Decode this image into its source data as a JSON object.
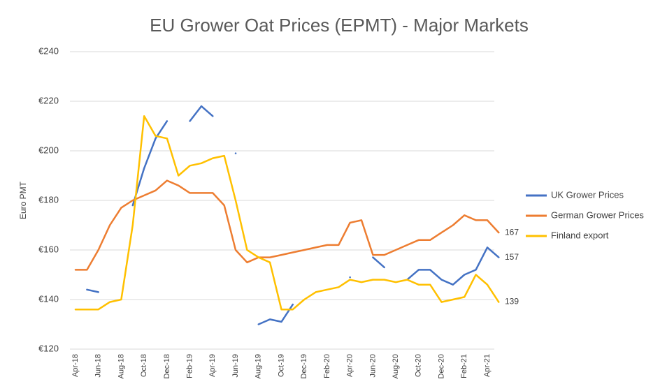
{
  "chart_data": {
    "type": "line",
    "title": "EU Grower Oat Prices (EPMT) - Major Markets",
    "y_label": "Euro PMT",
    "categories": [
      "Apr-18",
      null,
      "Jun-18",
      null,
      "Aug-18",
      null,
      "Oct-18",
      null,
      "Dec-18",
      null,
      "Feb-19",
      null,
      "Apr-19",
      null,
      "Jun-19",
      null,
      "Aug-19",
      null,
      "Oct-19",
      null,
      "Dec-19",
      null,
      "Feb-20",
      null,
      "Apr-20",
      null,
      "Jun-20",
      null,
      "Aug-20",
      null,
      "Oct-20",
      null,
      "Dec-20",
      null,
      "Feb-21",
      null,
      "Apr-21",
      null
    ],
    "series": [
      {
        "name": "UK Grower Prices",
        "color": "#4472c4",
        "end_label": "157",
        "values": [
          null,
          144,
          143,
          null,
          null,
          178,
          193,
          205,
          212,
          null,
          212,
          218,
          214,
          null,
          199,
          null,
          130,
          132,
          131,
          138,
          null,
          null,
          null,
          null,
          149,
          null,
          157,
          153,
          null,
          148,
          152,
          152,
          148,
          146,
          150,
          152,
          161,
          157
        ]
      },
      {
        "name": "German Grower Prices",
        "color": "#ed7d31",
        "end_label": "167",
        "values": [
          152,
          152,
          160,
          170,
          177,
          180,
          182,
          184,
          188,
          186,
          183,
          183,
          183,
          178,
          160,
          155,
          157,
          157,
          158,
          159,
          160,
          161,
          162,
          162,
          171,
          172,
          158,
          158,
          160,
          162,
          164,
          164,
          167,
          170,
          174,
          172,
          172,
          167
        ]
      },
      {
        "name": "Finland export",
        "color": "#ffc000",
        "end_label": "139",
        "values": [
          136,
          136,
          136,
          139,
          140,
          170,
          214,
          206,
          205,
          190,
          194,
          195,
          197,
          198,
          180,
          160,
          157,
          155,
          136,
          136,
          140,
          143,
          144,
          145,
          148,
          147,
          148,
          148,
          147,
          148,
          146,
          146,
          139,
          140,
          141,
          150,
          146,
          139
        ]
      }
    ],
    "ylim": [
      120,
      240
    ],
    "yticks": [
      {
        "value": 120,
        "label": "€120"
      },
      {
        "value": 140,
        "label": "€140"
      },
      {
        "value": 160,
        "label": "€160"
      },
      {
        "value": 180,
        "label": "€180"
      },
      {
        "value": 200,
        "label": "€200"
      },
      {
        "value": 220,
        "label": "€220"
      },
      {
        "value": 240,
        "label": "€240"
      }
    ],
    "grid": true,
    "legend": "right"
  }
}
